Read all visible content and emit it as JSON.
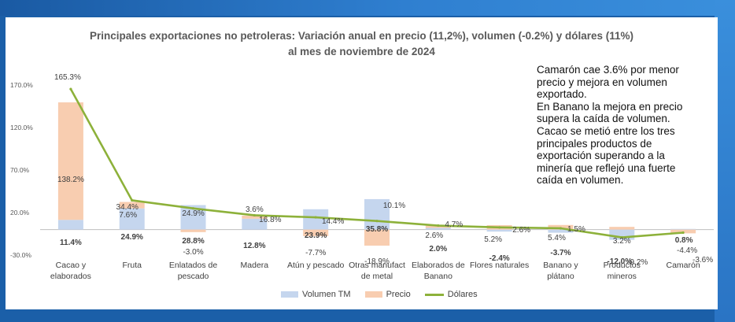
{
  "chart_data": {
    "type": "bar",
    "title": "Principales exportaciones no petroleras: Variación anual en precio (11,2%),  volumen (-0.2%) y dólares (11%)",
    "subtitle": "al mes de noviembre de 2024",
    "categories": [
      [
        "Cacao y",
        "elaborados"
      ],
      [
        "Fruta"
      ],
      [
        "Enlatados de",
        "pescado"
      ],
      [
        "Madera"
      ],
      [
        "Atún y pescado"
      ],
      [
        "Otras manufact",
        "de metal"
      ],
      [
        "Elaborados de",
        "Banano"
      ],
      [
        "Flores naturales"
      ],
      [
        "Banano y",
        "plátano"
      ],
      [
        "Productos",
        "mineros"
      ],
      [
        "Camarón"
      ]
    ],
    "series": [
      {
        "name": "Volumen TM",
        "color": "#c5d6ee",
        "values": [
          11.4,
          24.9,
          28.8,
          12.8,
          23.9,
          35.8,
          2.0,
          -2.4,
          -3.7,
          -12.0,
          0.8
        ],
        "labels": [
          "11.4%",
          "24.9%",
          "28.8%",
          "12.8%",
          "23.9%",
          "35.8%",
          "2.0%",
          "-2.4%",
          "-3.7%",
          "-12.0%",
          "0.8%"
        ]
      },
      {
        "name": "Precio",
        "color": "#f8cdb0",
        "values": [
          138.2,
          7.6,
          -3.0,
          3.6,
          -7.7,
          -18.9,
          2.6,
          5.2,
          5.4,
          3.2,
          -4.4
        ],
        "labels": [
          "138.2%",
          "7.6%",
          "-3.0%",
          "3.6%",
          "-7.7%",
          "-18.9%",
          "2.6%",
          "5.2%",
          "5.4%",
          "3.2%",
          "-4.4%"
        ]
      },
      {
        "name": "Dólares",
        "color": "#8db13a",
        "values": [
          165.3,
          34.4,
          24.9,
          16.8,
          14.4,
          10.1,
          4.7,
          2.6,
          1.5,
          -9.2,
          -3.6
        ],
        "labels": [
          "165.3%",
          "34.4%",
          "24.9%",
          "16.8%",
          "14.4%",
          "10.1%",
          "4.7%",
          "2.6%",
          "1.5%",
          "-9.2%",
          "-3.6%"
        ]
      }
    ],
    "yticks": [
      170,
      120,
      70,
      20,
      -30
    ],
    "ytick_labels": [
      "170.0%",
      "120.0%",
      "70.0%",
      "20.0%",
      "-30.0%"
    ],
    "ylim": [
      -30,
      170
    ],
    "legend_position": "bottom"
  },
  "annotation": [
    "Camarón cae 3.6% por menor",
    "precio y mejora en volumen",
    "exportado.",
    "En Banano la mejora en precio",
    "supera la caída de volumen.",
    "Cacao se metió entre los tres",
    "principales productos de",
    "exportación superando a la",
    "minería que reflejó una fuerte",
    "caída en volumen."
  ],
  "legend": {
    "volumen": "Volumen TM",
    "precio": "Precio",
    "dolares": "Dólares"
  }
}
